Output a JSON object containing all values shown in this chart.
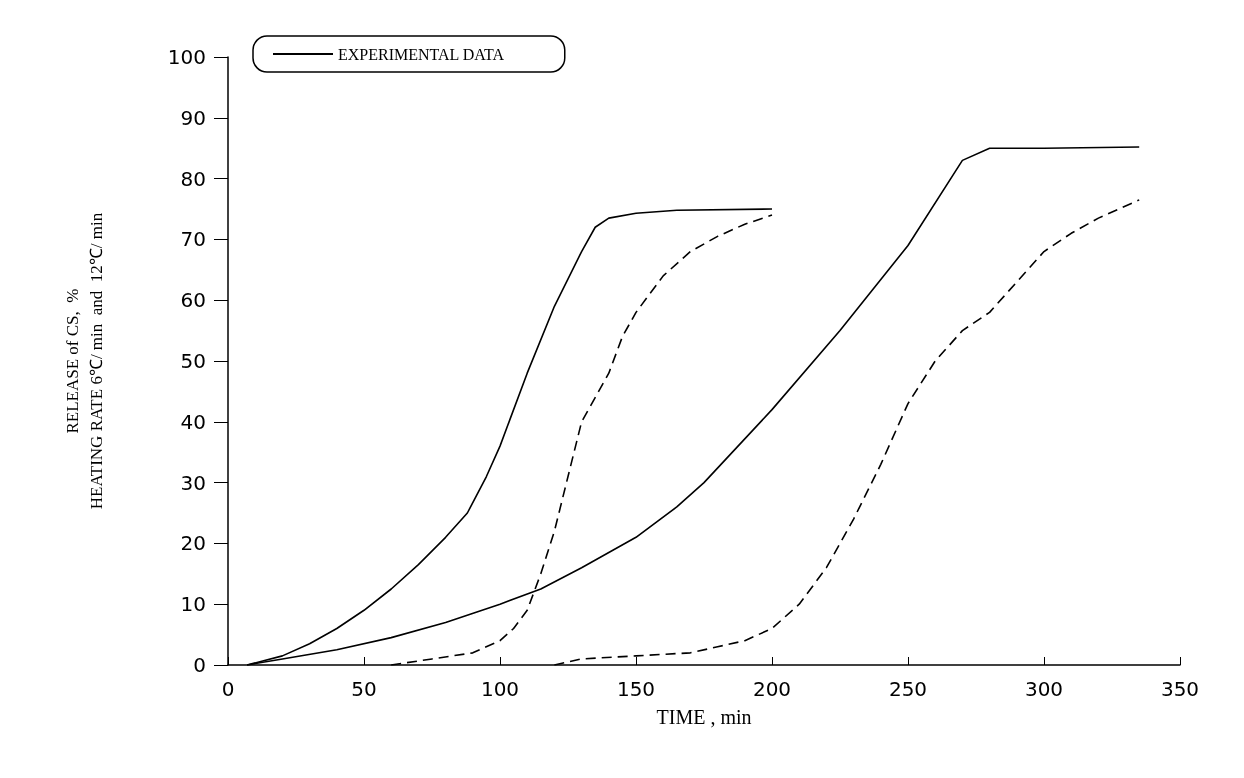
{
  "chart_data": {
    "type": "line",
    "xlabel": "TIME , min",
    "ylabel": "RELEASE of CS,  %\nHEATING RATE 6℃/ min  and  12℃/ min",
    "xlim": [
      0,
      350
    ],
    "xticks": [
      0,
      50,
      100,
      150,
      200,
      250,
      300,
      350
    ],
    "ylim": [
      0,
      100
    ],
    "yticks": [
      0,
      10,
      20,
      30,
      40,
      50,
      60,
      70,
      80,
      90,
      100
    ],
    "grid": false,
    "legend": "top left",
    "marker": "none",
    "series": [
      {
        "name": "EXPERIMENTAL DATA",
        "color": "#000000",
        "line_style": "solid",
        "x": [
          7,
          20,
          30,
          40,
          50,
          60,
          70,
          80,
          88,
          95,
          100,
          110,
          120,
          130,
          135,
          140,
          150,
          165,
          200
        ],
        "values": [
          0,
          1.5,
          3.5,
          6,
          9,
          12.5,
          16.5,
          21,
          25,
          31,
          36,
          48,
          59,
          68,
          72,
          73.5,
          74.3,
          74.8,
          75
        ]
      },
      {
        "color": "#000000",
        "line_style": "solid",
        "x": [
          7,
          20,
          40,
          60,
          80,
          100,
          115,
          130,
          150,
          165,
          175,
          200,
          225,
          250,
          270,
          280,
          300,
          335
        ],
        "values": [
          0,
          1,
          2.5,
          4.5,
          7,
          10,
          12.5,
          16,
          21,
          26,
          30,
          42,
          55,
          69,
          83,
          85,
          85,
          85.2
        ]
      },
      {
        "color": "#000000",
        "line_style": "dashed",
        "x": [
          60,
          75,
          90,
          100,
          105,
          110,
          115,
          120,
          125,
          130,
          140,
          145,
          150,
          160,
          170,
          180,
          190,
          200
        ],
        "values": [
          0,
          1,
          2,
          4,
          6,
          9,
          15,
          22,
          31,
          40,
          48,
          54,
          58,
          64,
          68,
          70.5,
          72.5,
          74
        ]
      },
      {
        "color": "#000000",
        "line_style": "dashed",
        "x": [
          120,
          130,
          150,
          170,
          180,
          190,
          200,
          210,
          220,
          230,
          240,
          250,
          260,
          270,
          280,
          290,
          300,
          310,
          320,
          335
        ],
        "values": [
          0,
          1,
          1.5,
          2,
          3,
          4,
          6,
          10,
          16,
          24,
          33,
          43,
          50,
          55,
          58,
          63,
          68,
          71,
          73.5,
          76.5
        ]
      }
    ]
  }
}
